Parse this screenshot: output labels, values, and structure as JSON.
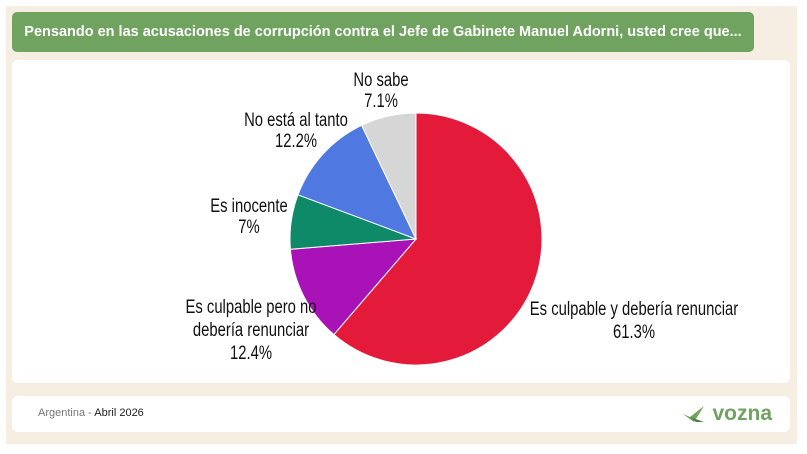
{
  "header": {
    "title": "Pensando en las acusaciones de corrupción contra el Jefe de Gabinete Manuel Adorni, usted cree que..."
  },
  "footer": {
    "country": "Argentina",
    "separator": " - ",
    "date": "Abril 2026",
    "brand": "vozna"
  },
  "colors": {
    "brand": "#6fa35f",
    "background": "#f6eee3"
  },
  "chart_data": {
    "type": "pie",
    "start": "top",
    "direction": "clockwise",
    "slices": [
      {
        "label": "Es culpable y debería renunciar",
        "value": 61.3,
        "display": "61.3%",
        "color": "#e31a3a"
      },
      {
        "label": "Es culpable pero no debería renunciar",
        "value": 12.4,
        "display": "12.4%",
        "color": "#a812b6"
      },
      {
        "label": "Es inocente",
        "value": 7,
        "display": "7%",
        "color": "#0e8a68"
      },
      {
        "label": "No está al tanto",
        "value": 12.2,
        "display": "12.2%",
        "color": "#4f78e0"
      },
      {
        "label": "No sabe",
        "value": 7.1,
        "display": "7.1%",
        "color": "#d6d6d6"
      }
    ]
  }
}
